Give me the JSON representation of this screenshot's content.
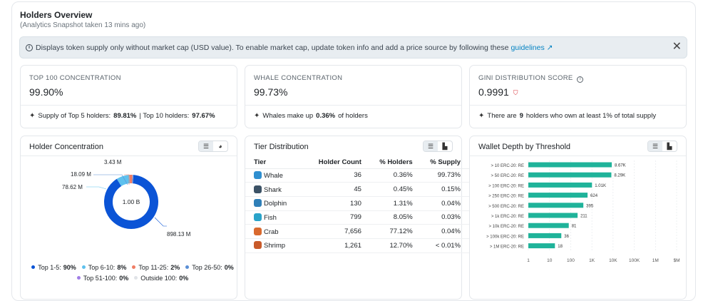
{
  "header": {
    "title": "Holders Overview",
    "subtitle": "(Analytics Snapshot taken 13 mins ago)"
  },
  "alert": {
    "text": "Displays token supply only without market cap (USD value). To enable market cap, update token info and add a price source by following these",
    "link": "guidelines ↗",
    "close": "✕"
  },
  "stats": {
    "top100": {
      "label": "TOP 100 CONCENTRATION",
      "value": "99.90%",
      "foot_pre": "Supply of Top 5 holders:",
      "foot_b1": "89.81%",
      "foot_mid": "| Top 10 holders:",
      "foot_b2": "97.67%"
    },
    "whale": {
      "label": "WHALE CONCENTRATION",
      "value": "99.73%",
      "foot_pre": "Whales make up",
      "foot_b1": "0.36%",
      "foot_post": "of holders"
    },
    "gini": {
      "label": "GINI DISTRIBUTION SCORE",
      "value": "0.9991",
      "foot_pre": "There are",
      "foot_b1": "9",
      "foot_post": "holders who own at least 1% of total supply"
    }
  },
  "holder_concentration": {
    "title": "Holder Concentration",
    "center_label": "1.00 B",
    "callouts": [
      "3.43 M",
      "18.09 M",
      "78.62 M",
      "898.13 M"
    ],
    "legend": [
      {
        "label": "Top 1-5:",
        "value": "90%",
        "color": "#0b54d6"
      },
      {
        "label": "Top 6-10:",
        "value": "8%",
        "color": "#5ec1ee"
      },
      {
        "label": "Top 11-25:",
        "value": "2%",
        "color": "#f07d64"
      },
      {
        "label": "Top 26-50:",
        "value": "0%",
        "color": "#5a8fd6"
      },
      {
        "label": "Top 51-100:",
        "value": "0%",
        "color": "#a17ee6"
      },
      {
        "label": "Outside 100:",
        "value": "0%",
        "color": "#e0e3e7"
      }
    ],
    "slices": [
      {
        "name": "Top 1-5",
        "value": 898.13,
        "color": "#0b54d6"
      },
      {
        "name": "Top 6-10",
        "value": 78.62,
        "color": "#5ec1ee"
      },
      {
        "name": "Top 11-25",
        "value": 18.09,
        "color": "#f07d64"
      },
      {
        "name": "Top 26-50",
        "value": 3.43,
        "color": "#5a8fd6"
      },
      {
        "name": "Top 51-100",
        "value": 0.8,
        "color": "#a17ee6"
      },
      {
        "name": "Outside 100",
        "value": 0.93,
        "color": "#e0e3e7"
      }
    ]
  },
  "tier_distribution": {
    "title": "Tier Distribution",
    "columns": [
      "Tier",
      "Holder Count",
      "% Holders",
      "% Supply"
    ],
    "rows": [
      {
        "tier": "Whale",
        "icon": "whale-icon",
        "color": "#2f8fd0",
        "count": "36",
        "holders": "0.36%",
        "supply": "99.73%"
      },
      {
        "tier": "Shark",
        "icon": "shark-icon",
        "color": "#3c5266",
        "count": "45",
        "holders": "0.45%",
        "supply": "0.15%"
      },
      {
        "tier": "Dolphin",
        "icon": "dolphin-icon",
        "color": "#2f7fb8",
        "count": "130",
        "holders": "1.31%",
        "supply": "0.04%"
      },
      {
        "tier": "Fish",
        "icon": "fish-icon",
        "color": "#29a3c9",
        "count": "799",
        "holders": "8.05%",
        "supply": "0.03%"
      },
      {
        "tier": "Crab",
        "icon": "crab-icon",
        "color": "#d9692e",
        "count": "7,656",
        "holders": "77.12%",
        "supply": "0.04%"
      },
      {
        "tier": "Shrimp",
        "icon": "shrimp-icon",
        "color": "#c85a2a",
        "count": "1,261",
        "holders": "12.70%",
        "supply": "< 0.01%"
      }
    ]
  },
  "wallet_depth": {
    "title": "Wallet Depth by Threshold",
    "bar_color": "#1fb39a"
  },
  "chart_data": {
    "type": "bar",
    "orientation": "horizontal",
    "scale": "log",
    "categories": [
      "> 10 ERC-20: RE",
      "> 50 ERC-20: RE",
      "> 100 ERC-20: RE",
      "> 250 ERC-20: RE",
      "> 500 ERC-20: RE",
      "> 1k ERC-20: RE",
      "> 10k ERC-20: RE",
      "> 100k ERC-20: RE",
      "> 1M ERC-20: RE"
    ],
    "values": [
      8670,
      8290,
      1010,
      624,
      395,
      211,
      81,
      36,
      18
    ],
    "data_labels": [
      "8.67K",
      "8.29K",
      "1.01K",
      "624",
      "395",
      "211",
      "81",
      "36",
      "18"
    ],
    "x_ticks": [
      "1",
      "10",
      "100",
      "1K",
      "10K",
      "100K",
      "1M",
      "$M"
    ],
    "xlim": [
      1,
      10000000
    ],
    "grid": true
  }
}
